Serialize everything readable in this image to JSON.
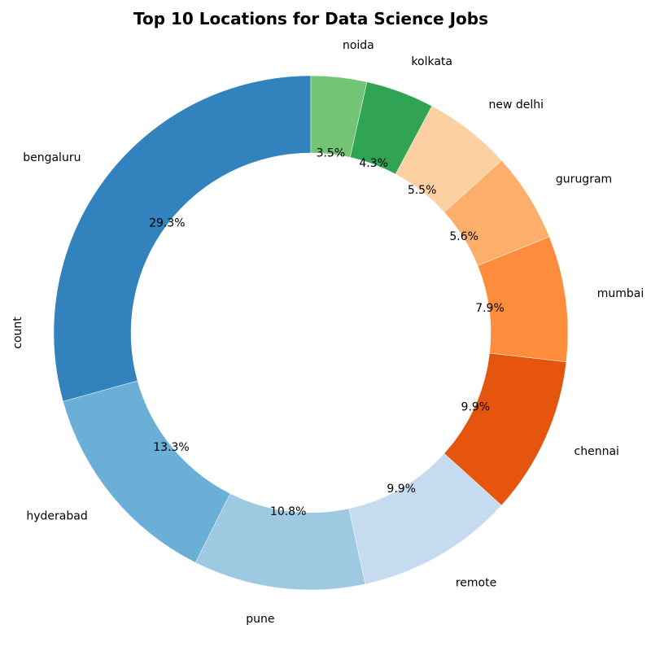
{
  "chart_data": {
    "type": "pie",
    "donut": true,
    "title": "Top 10 Locations for Data Science Jobs",
    "ylabel": "count",
    "start_angle_deg": 90,
    "direction": "counterclockwise",
    "slices": [
      {
        "label": "bengaluru",
        "percent": 29.3,
        "percent_label": "29.3%",
        "color": "#3182bd"
      },
      {
        "label": "hyderabad",
        "percent": 13.3,
        "percent_label": "13.3%",
        "color": "#6baed6"
      },
      {
        "label": "pune",
        "percent": 10.8,
        "percent_label": "10.8%",
        "color": "#9ecae1"
      },
      {
        "label": "remote",
        "percent": 9.9,
        "percent_label": "9.9%",
        "color": "#c6dbef"
      },
      {
        "label": "chennai",
        "percent": 9.9,
        "percent_label": "9.9%",
        "color": "#e6550d"
      },
      {
        "label": "mumbai",
        "percent": 7.9,
        "percent_label": "7.9%",
        "color": "#fd8d3c"
      },
      {
        "label": "gurugram",
        "percent": 5.6,
        "percent_label": "5.6%",
        "color": "#fdae6b"
      },
      {
        "label": "new delhi",
        "percent": 5.5,
        "percent_label": "5.5%",
        "color": "#fdd0a2"
      },
      {
        "label": "kolkata",
        "percent": 4.3,
        "percent_label": "4.3%",
        "color": "#31a354"
      },
      {
        "label": "noida",
        "percent": 3.5,
        "percent_label": "3.5%",
        "color": "#74c476"
      }
    ]
  }
}
